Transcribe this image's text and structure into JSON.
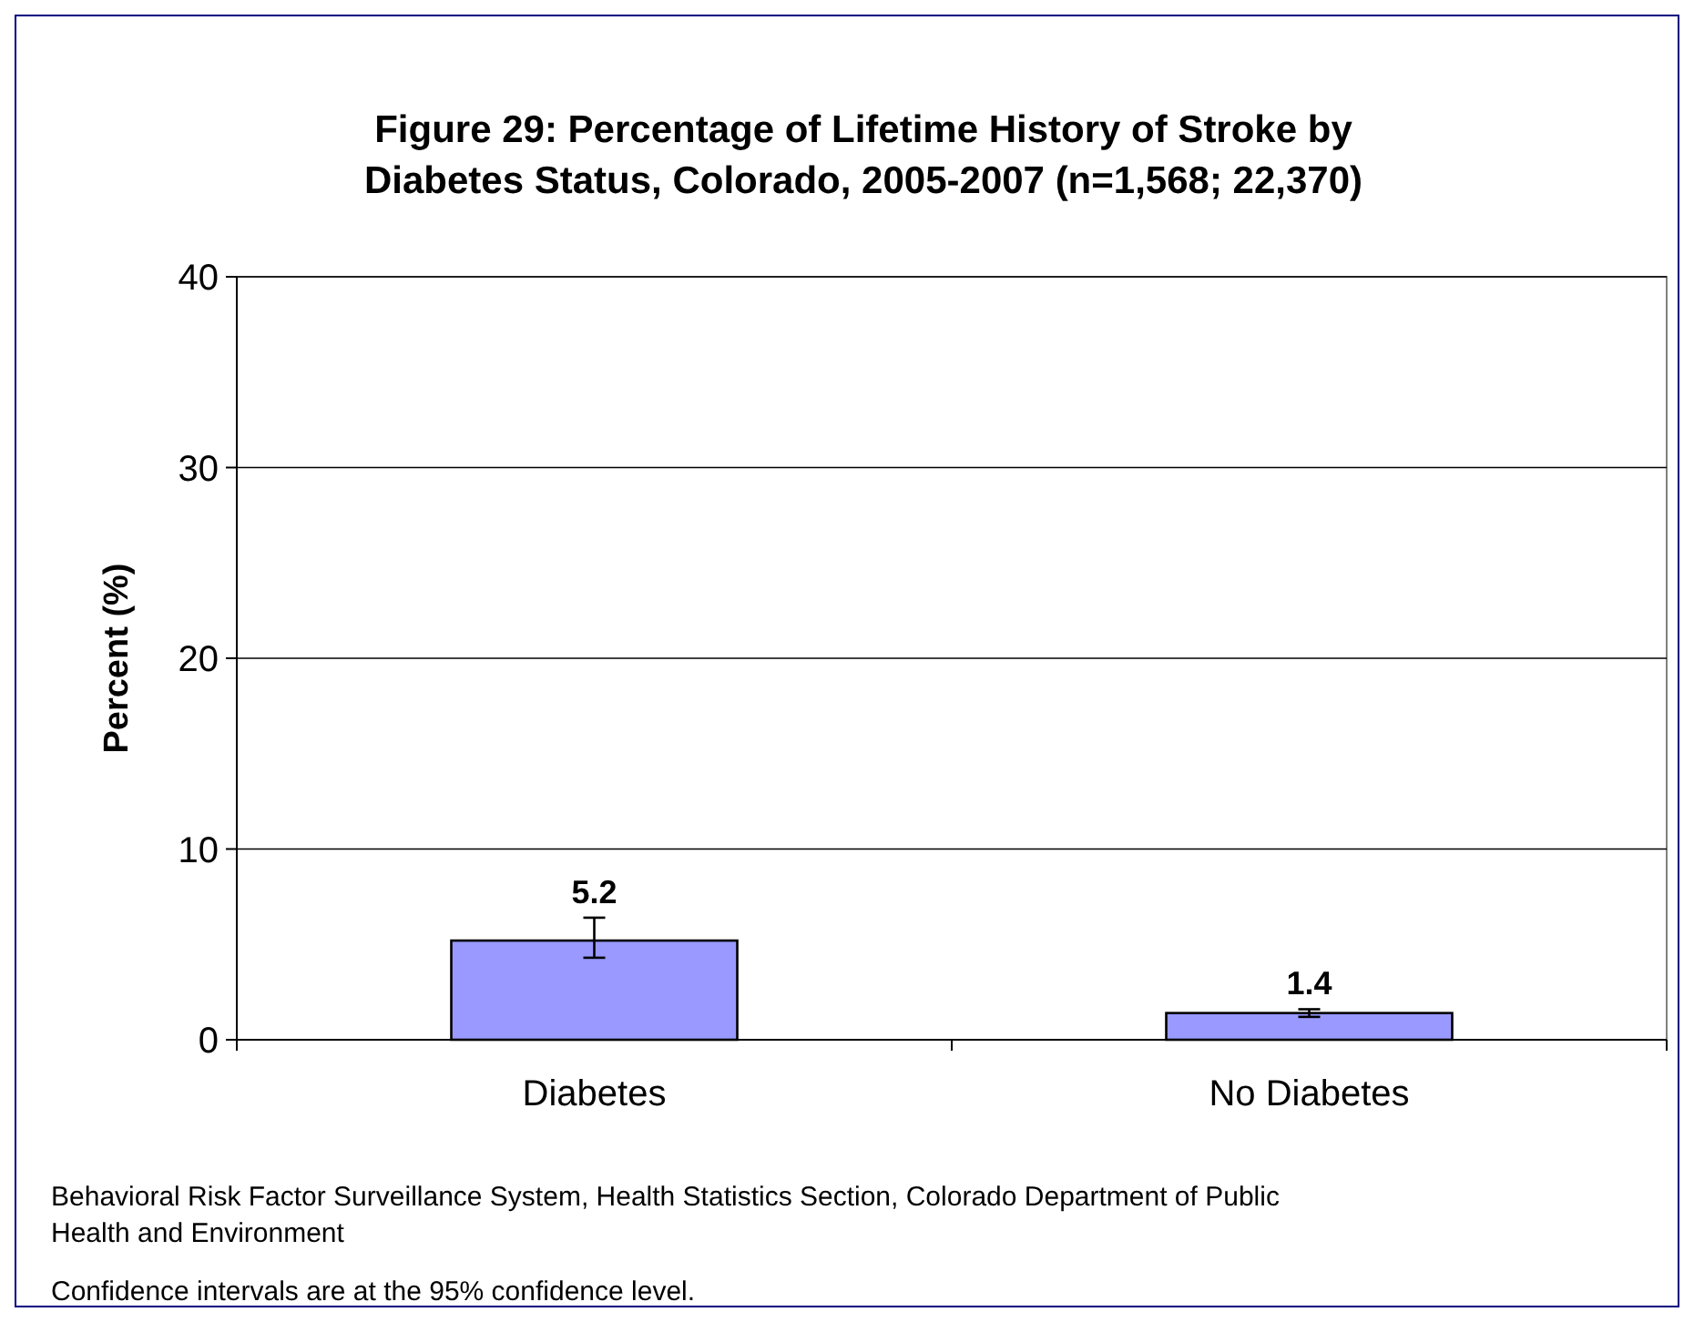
{
  "chart_data": {
    "type": "bar",
    "title": "Figure 29: Percentage of Lifetime History of Stroke by Diabetes Status, Colorado, 2005-2007 (n=1,568; 22,370)",
    "ylabel": "Percent (%)",
    "categories": [
      "Diabetes",
      "No Diabetes"
    ],
    "values": [
      5.2,
      1.4
    ],
    "color": "#9999ff",
    "errors": [
      [
        4.3,
        6.4
      ],
      [
        1.2,
        1.6
      ]
    ],
    "data_labels": true,
    "ylim": [
      0,
      40
    ],
    "yticks": [
      0,
      10,
      20,
      30,
      40
    ],
    "grid": "y",
    "annotations": [
      "Behavioral Risk Factor Surveillance System, Health Statistics Section, Colorado Department of Public Health and Environment",
      "Confidence intervals are at the 95% confidence level."
    ]
  }
}
